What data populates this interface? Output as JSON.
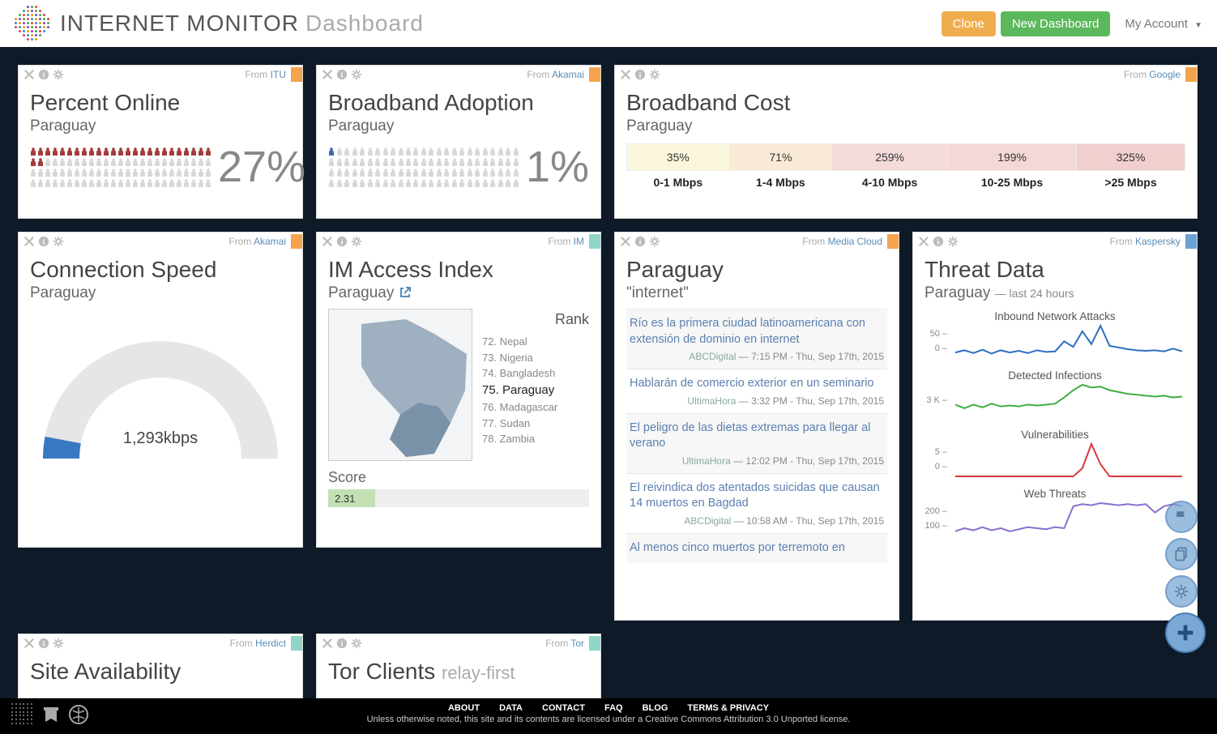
{
  "brand": {
    "name": "INTERNET MONITOR",
    "suffix": "Dashboard"
  },
  "topbar": {
    "clone": "Clone",
    "new": "New Dashboard",
    "account": "My Account"
  },
  "accents": {
    "orange": "#f5a34f",
    "teal": "#8fd6c9",
    "blue": "#6ea2d4"
  },
  "cards": {
    "percent_online": {
      "source_label": "From ",
      "source": "ITU",
      "title": "Percent Online",
      "country": "Paraguay",
      "value": "27%",
      "filled": 27,
      "total": 100,
      "fill_color": "#a33b3b",
      "empty_color": "#d8d8d8",
      "accent": "#f5a34f"
    },
    "broadband_adoption": {
      "source_label": "From ",
      "source": "Akamai",
      "title": "Broadband Adoption",
      "country": "Paraguay",
      "value": "1%",
      "filled": 1,
      "total": 100,
      "fill_color": "#3a6ea8",
      "empty_color": "#d8d8d8",
      "accent": "#f5a34f"
    },
    "broadband_cost": {
      "source_label": "From ",
      "source": "Google",
      "title": "Broadband Cost",
      "country": "Paraguay",
      "accent": "#f5a34f",
      "tiers": [
        {
          "label": "0-1 Mbps",
          "pct": "35%",
          "bg": "#fbf7dc"
        },
        {
          "label": "1-4 Mbps",
          "pct": "71%",
          "bg": "#f8ead6"
        },
        {
          "label": "4-10 Mbps",
          "pct": "259%",
          "bg": "#f4dada"
        },
        {
          "label": "10-25 Mbps",
          "pct": "199%",
          "bg": "#f4d7d7"
        },
        {
          "label": ">25 Mbps",
          "pct": "325%",
          "bg": "#f1cfcf"
        }
      ]
    },
    "connection_speed": {
      "source_label": "From ",
      "source": "Akamai",
      "title": "Connection Speed",
      "country": "Paraguay",
      "value": "1,293kbps",
      "gauge_pct": 0.06,
      "accent": "#f5a34f",
      "track_color": "#e6e6e6",
      "fill_color": "#3a78c4"
    },
    "access_index": {
      "source_label": "From ",
      "source": "IM",
      "title": "IM Access Index",
      "country": "Paraguay",
      "accent": "#8fd6c9",
      "rank_header": "Rank",
      "ranks": [
        {
          "n": "72.",
          "c": "Nepal"
        },
        {
          "n": "73.",
          "c": "Nigeria"
        },
        {
          "n": "74.",
          "c": "Bangladesh"
        },
        {
          "n": "75.",
          "c": "Paraguay",
          "me": true
        },
        {
          "n": "76.",
          "c": "Madagascar"
        },
        {
          "n": "77.",
          "c": "Sudan"
        },
        {
          "n": "78.",
          "c": "Zambia"
        }
      ],
      "score_label": "Score",
      "score": "2.31",
      "score_pct": 0.18
    },
    "media_cloud": {
      "source_label": "From ",
      "source": "Media Cloud",
      "title": "Paraguay",
      "subtitle": "\"internet\"",
      "accent": "#f5a34f",
      "items": [
        {
          "title": "Río es la primera ciudad latinoamericana con extensión de dominio en internet",
          "src": "ABCDigital",
          "time": "7:15 PM - Thu, Sep 17th, 2015"
        },
        {
          "title": "Hablarán de comercio exterior en un seminario",
          "src": "UltimaHora",
          "time": "3:32 PM - Thu, Sep 17th, 2015"
        },
        {
          "title": "El peligro de las dietas extremas para llegar al verano",
          "src": "UltimaHora",
          "time": "12:02 PM - Thu, Sep 17th, 2015"
        },
        {
          "title": "El reivindica dos atentados suicidas que causan 14 muertos en Bagdad",
          "src": "ABCDigital",
          "time": "10:58 AM - Thu, Sep 17th, 2015"
        },
        {
          "title": "Al menos cinco muertos por terremoto en",
          "src": "",
          "time": ""
        }
      ]
    },
    "threat": {
      "source_label": "From ",
      "source": "Kaspersky",
      "title": "Threat Data",
      "country": "Paraguay",
      "suffix": "— last 24 hours",
      "accent": "#6ea2d4",
      "series": [
        {
          "label": "Inbound Network Attacks",
          "color": "#2e6fc2",
          "ymax": "50",
          "ymin": "0",
          "points": [
            10,
            14,
            9,
            15,
            8,
            14,
            10,
            13,
            9,
            14,
            11,
            12,
            30,
            20,
            48,
            25,
            58,
            22,
            19,
            16,
            14,
            13,
            14,
            12,
            17,
            12
          ]
        },
        {
          "label": "Detected Infections",
          "color": "#3fae3f",
          "ymax": "3 K",
          "ymin": "",
          "points": [
            14,
            10,
            14,
            11,
            15,
            12,
            13,
            12,
            14,
            13,
            14,
            15,
            22,
            30,
            36,
            33,
            34,
            30,
            28,
            26,
            25,
            24,
            23,
            24,
            22,
            23
          ]
        },
        {
          "label": "Vulnerabilities",
          "color": "#d83a3a",
          "ymax": "5",
          "ymin": "0",
          "points": [
            0,
            0,
            0,
            0,
            0,
            0,
            0,
            0,
            0,
            0,
            0,
            0,
            0,
            0,
            2,
            8,
            3,
            0,
            0,
            0,
            0,
            0,
            0,
            0,
            0,
            0
          ]
        },
        {
          "label": "Web Threats",
          "color": "#8a6fd0",
          "ymax": "200",
          "ymin": "100",
          "points": [
            4,
            7,
            5,
            8,
            5,
            7,
            4,
            6,
            8,
            7,
            6,
            8,
            7,
            28,
            30,
            29,
            31,
            30,
            29,
            30,
            29,
            30,
            22,
            28,
            30,
            28
          ]
        }
      ]
    },
    "site_availability": {
      "source_label": "From ",
      "source": "Herdict",
      "title": "Site Availability",
      "accent": "#8fd6c9"
    },
    "tor_clients": {
      "source_label": "From ",
      "source": "Tor",
      "title": "Tor Clients",
      "suffix": "relay-first",
      "accent": "#8fd6c9"
    }
  },
  "footer": {
    "links": [
      "ABOUT",
      "DATA",
      "CONTACT",
      "FAQ",
      "BLOG",
      "TERMS & PRIVACY"
    ],
    "cc": "Unless otherwise noted, this site and its contents are licensed under a Creative Commons Attribution 3.0 Unported license."
  }
}
